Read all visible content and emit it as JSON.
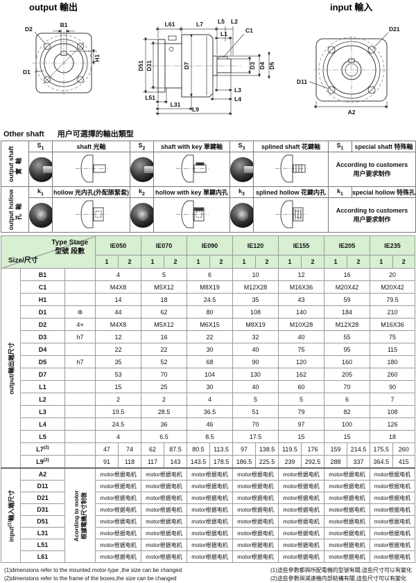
{
  "drawings": {
    "output_title": "output 輸出",
    "input_title": "input 輸入",
    "labels": {
      "D2": "D2",
      "B1": "B1",
      "H1": "H1",
      "D1": "D1",
      "L61": "L61",
      "L7": "L7",
      "L5": "L5",
      "L2": "L2",
      "L1": "L1",
      "C1": "C1",
      "D51": "D51",
      "D31": "D31",
      "D7": "D7",
      "D3": "D3",
      "D4": "D4",
      "D5": "D5",
      "L51": "L51",
      "L31": "L31",
      "L3": "L3",
      "L4": "L4",
      "L9": "L9",
      "D21": "D21",
      "D11": "D11",
      "A2": "A2"
    }
  },
  "other_shaft": {
    "title_en": "Other shaft",
    "title_zh": "用户可選擇的輸出類型",
    "groups": [
      {
        "side_en": "output shaft",
        "side_zh": "實軸",
        "items": [
          {
            "code": "S1",
            "label": "shaft 光軸"
          },
          {
            "code": "S2",
            "label": "shaft with key 單鍵軸"
          },
          {
            "code": "S3",
            "label": "splined shaft 花鍵軸"
          }
        ],
        "special_code": "S1",
        "special_label": "special shaft 特殊軸",
        "note_en": "According to customers",
        "note_zh": "用户要求制作"
      },
      {
        "side_en": "output hollow",
        "side_zh": "孔軸",
        "items": [
          {
            "code": "k1",
            "label": "hollow 光内孔(外配脹緊套)"
          },
          {
            "code": "k2",
            "label": "hollow with key 單鍵内孔"
          },
          {
            "code": "k3",
            "label": "splined hollow 花鍵内孔"
          }
        ],
        "special_code": "k1",
        "special_label": "special hollow 特殊孔",
        "note_en": "According to customers",
        "note_zh": "用户要求制作"
      }
    ]
  },
  "spec_table": {
    "corner": {
      "line1": "Type Stage",
      "line2": "型號 段數",
      "size_label": "Size/尺寸"
    },
    "models": [
      "IE050",
      "IE070",
      "IE090",
      "IE120",
      "IE155",
      "IE205",
      "IE235"
    ],
    "stages": [
      "1",
      "2"
    ],
    "output_side_label": "output/輸出端尺寸",
    "input_side_label": "input",
    "input_side_sup": "(1)",
    "input_side_label_zh": "輸入端尺寸",
    "input_note_en": "Acording to motor",
    "input_note_zh": "根據電機尺寸制做",
    "motor_text": "motor根据电机",
    "rows": [
      {
        "name": "B1",
        "sym": "",
        "values": [
          "4",
          "5",
          "6",
          "10",
          "12",
          "16",
          "20"
        ]
      },
      {
        "name": "C1",
        "sym": "",
        "values": [
          "M4X8",
          "M5X12",
          "M8X19",
          "M12X28",
          "M16X36",
          "M20X42",
          "M20X42"
        ]
      },
      {
        "name": "H1",
        "sym": "",
        "values": [
          "14",
          "18",
          "24.5",
          "35",
          "43",
          "59",
          "79.5"
        ]
      },
      {
        "name": "D1",
        "sym": "Φ",
        "values": [
          "44",
          "62",
          "80",
          "108",
          "140",
          "184",
          "210"
        ]
      },
      {
        "name": "D2",
        "sym": "4×",
        "values": [
          "M4X8",
          "M5X12",
          "M6X15",
          "M8X19",
          "M10X28",
          "M12X28",
          "M16X36"
        ]
      },
      {
        "name": "D3",
        "sym": "h7",
        "values": [
          "12",
          "16",
          "22",
          "32",
          "40",
          "55",
          "75"
        ]
      },
      {
        "name": "D4",
        "sym": "",
        "values": [
          "22",
          "22",
          "30",
          "40",
          "75",
          "95",
          "115"
        ]
      },
      {
        "name": "D5",
        "sym": "h7",
        "values": [
          "35",
          "52",
          "68",
          "90",
          "120",
          "160",
          "180"
        ]
      },
      {
        "name": "D7",
        "sym": "",
        "values": [
          "53",
          "70",
          "104",
          "130",
          "162",
          "205",
          "260"
        ]
      },
      {
        "name": "L1",
        "sym": "",
        "values": [
          "15",
          "25",
          "30",
          "40",
          "60",
          "70",
          "90"
        ]
      },
      {
        "name": "L2",
        "sym": "",
        "values": [
          "2",
          "2",
          "4",
          "5",
          "5",
          "6",
          "7"
        ]
      },
      {
        "name": "L3",
        "sym": "",
        "values": [
          "19.5",
          "28.5",
          "36.5",
          "51",
          "79",
          "82",
          "108"
        ]
      },
      {
        "name": "L4",
        "sym": "",
        "values": [
          "24.5",
          "36",
          "46",
          "70",
          "97",
          "100",
          "126"
        ]
      },
      {
        "name": "L5",
        "sym": "",
        "values": [
          "4",
          "6.5",
          "8.5",
          "17.5",
          "15",
          "15",
          "18"
        ]
      },
      {
        "name": "L7",
        "sup": "(2)",
        "sym": "",
        "pairs": [
          [
            "47",
            "74"
          ],
          [
            "62",
            "87.5"
          ],
          [
            "80.5",
            "113.5"
          ],
          [
            "97",
            "138.5"
          ],
          [
            "119.5",
            "176"
          ],
          [
            "159",
            "214.5"
          ],
          [
            "175.5",
            "260"
          ]
        ]
      },
      {
        "name": "L9",
        "sup": "(2)",
        "sym": "",
        "pairs": [
          [
            "91",
            "118"
          ],
          [
            "117",
            "143"
          ],
          [
            "143.5",
            "178.5"
          ],
          [
            "186.5",
            "225.5"
          ],
          [
            "239",
            "292.5"
          ],
          [
            "288",
            "337"
          ],
          [
            "364.5",
            "415"
          ]
        ]
      }
    ],
    "input_rows": [
      "A2",
      "D11",
      "D21",
      "D31",
      "D51",
      "L31",
      "L51",
      "L61"
    ]
  },
  "footnotes": {
    "en": [
      "(1)dimensions refer to the mounted motor-type ,the size can be changed",
      "(2)dimensions refer to the frame of the boxes,the size can be changed"
    ],
    "zh": [
      "(1)這些參數都與所配電機的型號有關,這些尺寸可以有變化",
      "(2)這些參數與減速機内部結構有關,這些尺寸可以有變化"
    ]
  },
  "colors": {
    "header_green": "#d8efd2",
    "border": "#9a9a9a"
  }
}
